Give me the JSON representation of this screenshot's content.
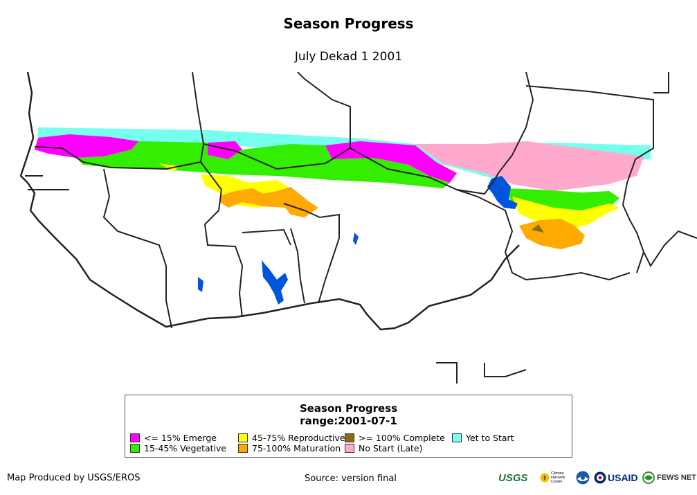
{
  "header": {
    "title": "Season Progress",
    "subtitle": "July Dekad 1 2001"
  },
  "legend": {
    "title_line1": "Season Progress",
    "title_line2": "range:2001-07-1",
    "items": [
      {
        "label": "<= 15% Emerge",
        "color": "#ff00ff"
      },
      {
        "label": "15-45% Vegetative",
        "color": "#33ee00"
      },
      {
        "label": "45-75% Reproductive",
        "color": "#ffff00"
      },
      {
        "label": "75-100% Maturation",
        "color": "#ffaa00"
      },
      {
        "label": ">= 100% Complete",
        "color": "#8b6a10"
      },
      {
        "label": "No Start (Late)",
        "color": "#ffaacc"
      },
      {
        "label": "Yet to Start",
        "color": "#77ffee"
      }
    ]
  },
  "footer": {
    "produced_by": "Map Produced by USGS/EROS",
    "source": "Source: version final"
  },
  "logos": {
    "usgs": "USGS",
    "chc": "Climate Hazards Center",
    "usaid": "USAID",
    "fews": "FEWS NET"
  },
  "colors": {
    "water": "#0055dd",
    "border": "#222222"
  }
}
